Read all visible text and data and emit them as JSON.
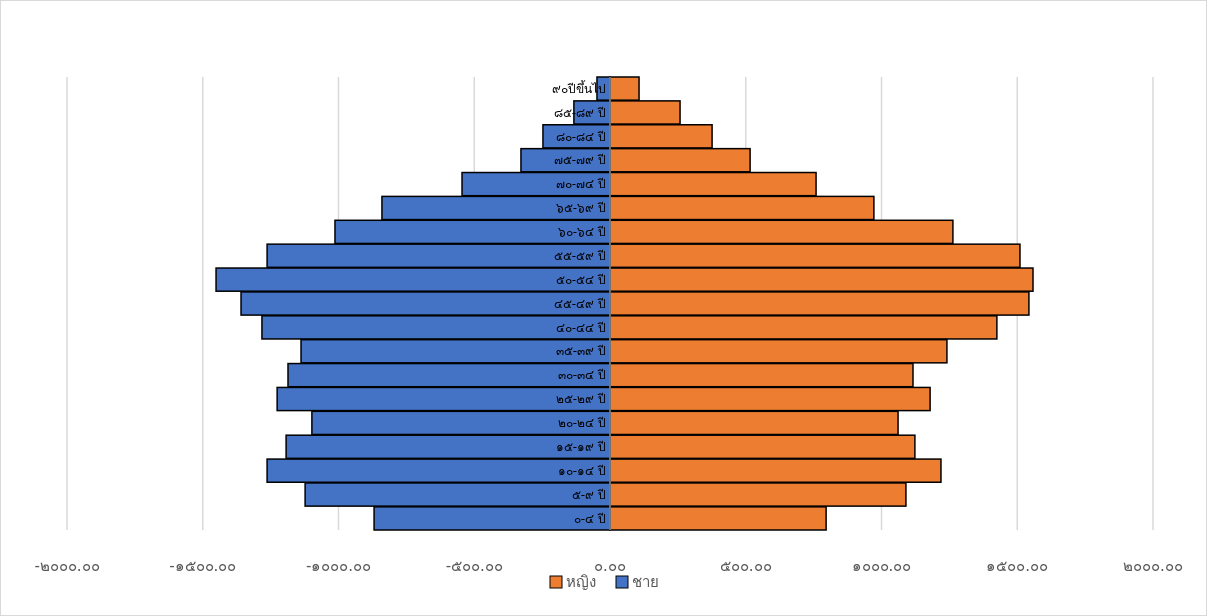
{
  "chart_data": {
    "type": "bar",
    "orientation": "horizontal",
    "stacked": true,
    "categories": [
      "๙๐ปีขึ้นไป",
      "๘๕-๘๙ ปี",
      "๘๐-๘๔ ปี",
      "๗๕-๗๙ ปี",
      "๗๐-๗๔ ปี",
      "๖๕-๖๙ ปี",
      "๖๐-๖๔ ปี",
      "๕๕-๕๙ ปี",
      "๕๐-๕๔ ปี",
      "๔๕-๔๙ ปี",
      "๔๐-๔๔ ปี",
      "๓๕-๓๙ ปี",
      "๓๐-๓๔ ปี",
      "๒๕-๒๙ ปี",
      "๒๐-๒๔ ปี",
      "๑๕-๑๙ ปี",
      "๑๐-๑๔ ปี",
      "๕-๙ ปี",
      "๐-๔ ปี"
    ],
    "series": [
      {
        "name": "หญิง",
        "color": "#ed7d31",
        "values": [
          107,
          258,
          376,
          516,
          759,
          972,
          1263,
          1510,
          1558,
          1543,
          1425,
          1241,
          1116,
          1179,
          1061,
          1123,
          1219,
          1090,
          796
        ]
      },
      {
        "name": "ชาย",
        "color": "#4472c4",
        "values": [
          -48,
          -133,
          -247,
          -328,
          -545,
          -840,
          -1013,
          -1263,
          -1451,
          -1359,
          -1282,
          -1138,
          -1186,
          -1226,
          -1098,
          -1193,
          -1263,
          -1123,
          -869
        ]
      }
    ],
    "xlim": [
      -2000,
      2000
    ],
    "xticks": [
      {
        "value": -2000,
        "label": "-๒๐๐๐.๐๐"
      },
      {
        "value": -1500,
        "label": "-๑๕๐๐.๐๐"
      },
      {
        "value": -1000,
        "label": "-๑๐๐๐.๐๐"
      },
      {
        "value": -500,
        "label": "-๕๐๐.๐๐"
      },
      {
        "value": 0,
        "label": "๐.๐๐"
      },
      {
        "value": 500,
        "label": "๕๐๐.๐๐"
      },
      {
        "value": 1000,
        "label": "๑๐๐๐.๐๐"
      },
      {
        "value": 1500,
        "label": "๑๕๐๐.๐๐"
      },
      {
        "value": 2000,
        "label": "๒๐๐๐.๐๐"
      }
    ],
    "grid": "x",
    "legend": "bottom"
  }
}
